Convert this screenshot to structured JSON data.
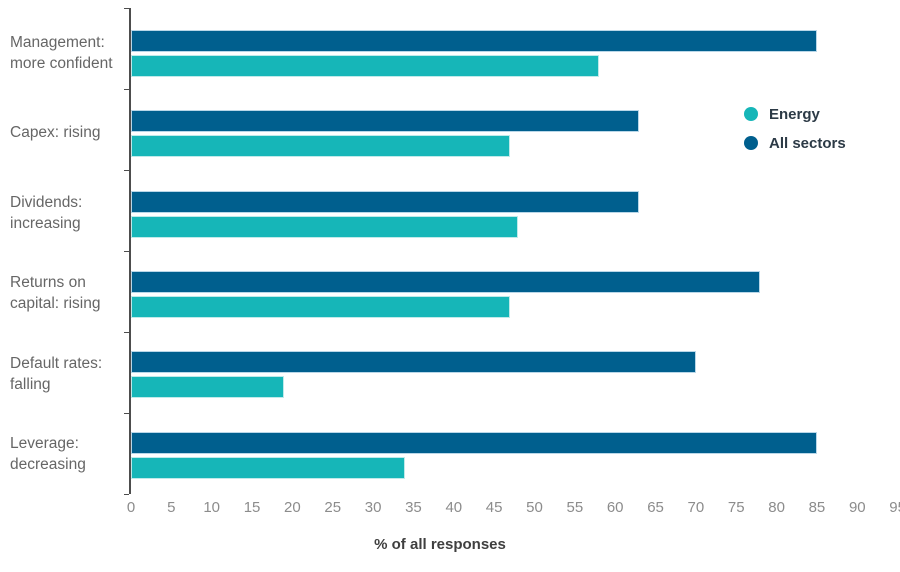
{
  "legend": {
    "items": [
      {
        "label": "Energy",
        "color": "#16b6b8"
      },
      {
        "label": "All sectors",
        "color": "#005f8e"
      }
    ]
  },
  "chart_data": {
    "type": "bar",
    "orientation": "horizontal",
    "title": "",
    "xlabel": "% of all responses",
    "ylabel": "",
    "xlim": [
      0,
      95
    ],
    "xticks": [
      0,
      5,
      10,
      15,
      20,
      25,
      30,
      35,
      40,
      45,
      50,
      55,
      60,
      65,
      70,
      75,
      80,
      85,
      90,
      95
    ],
    "grid": false,
    "legend_position": "right",
    "categories": [
      "Management: more confident",
      "Capex: rising",
      "Dividends: increasing",
      "Returns on capital: rising",
      "Default rates: falling",
      "Leverage: decreasing"
    ],
    "category_lines": [
      [
        "Management:",
        "more confident"
      ],
      [
        "Capex: rising"
      ],
      [
        "Dividends:",
        "increasing"
      ],
      [
        "Returns on",
        "capital: rising"
      ],
      [
        "Default rates:",
        "falling"
      ],
      [
        "Leverage:",
        "decreasing"
      ]
    ],
    "series": [
      {
        "name": "All sectors",
        "color": "#005f8e",
        "values": [
          85,
          63,
          63,
          78,
          70,
          85
        ]
      },
      {
        "name": "Energy",
        "color": "#16b6b8",
        "values": [
          58,
          47,
          48,
          47,
          19,
          34
        ]
      }
    ]
  }
}
